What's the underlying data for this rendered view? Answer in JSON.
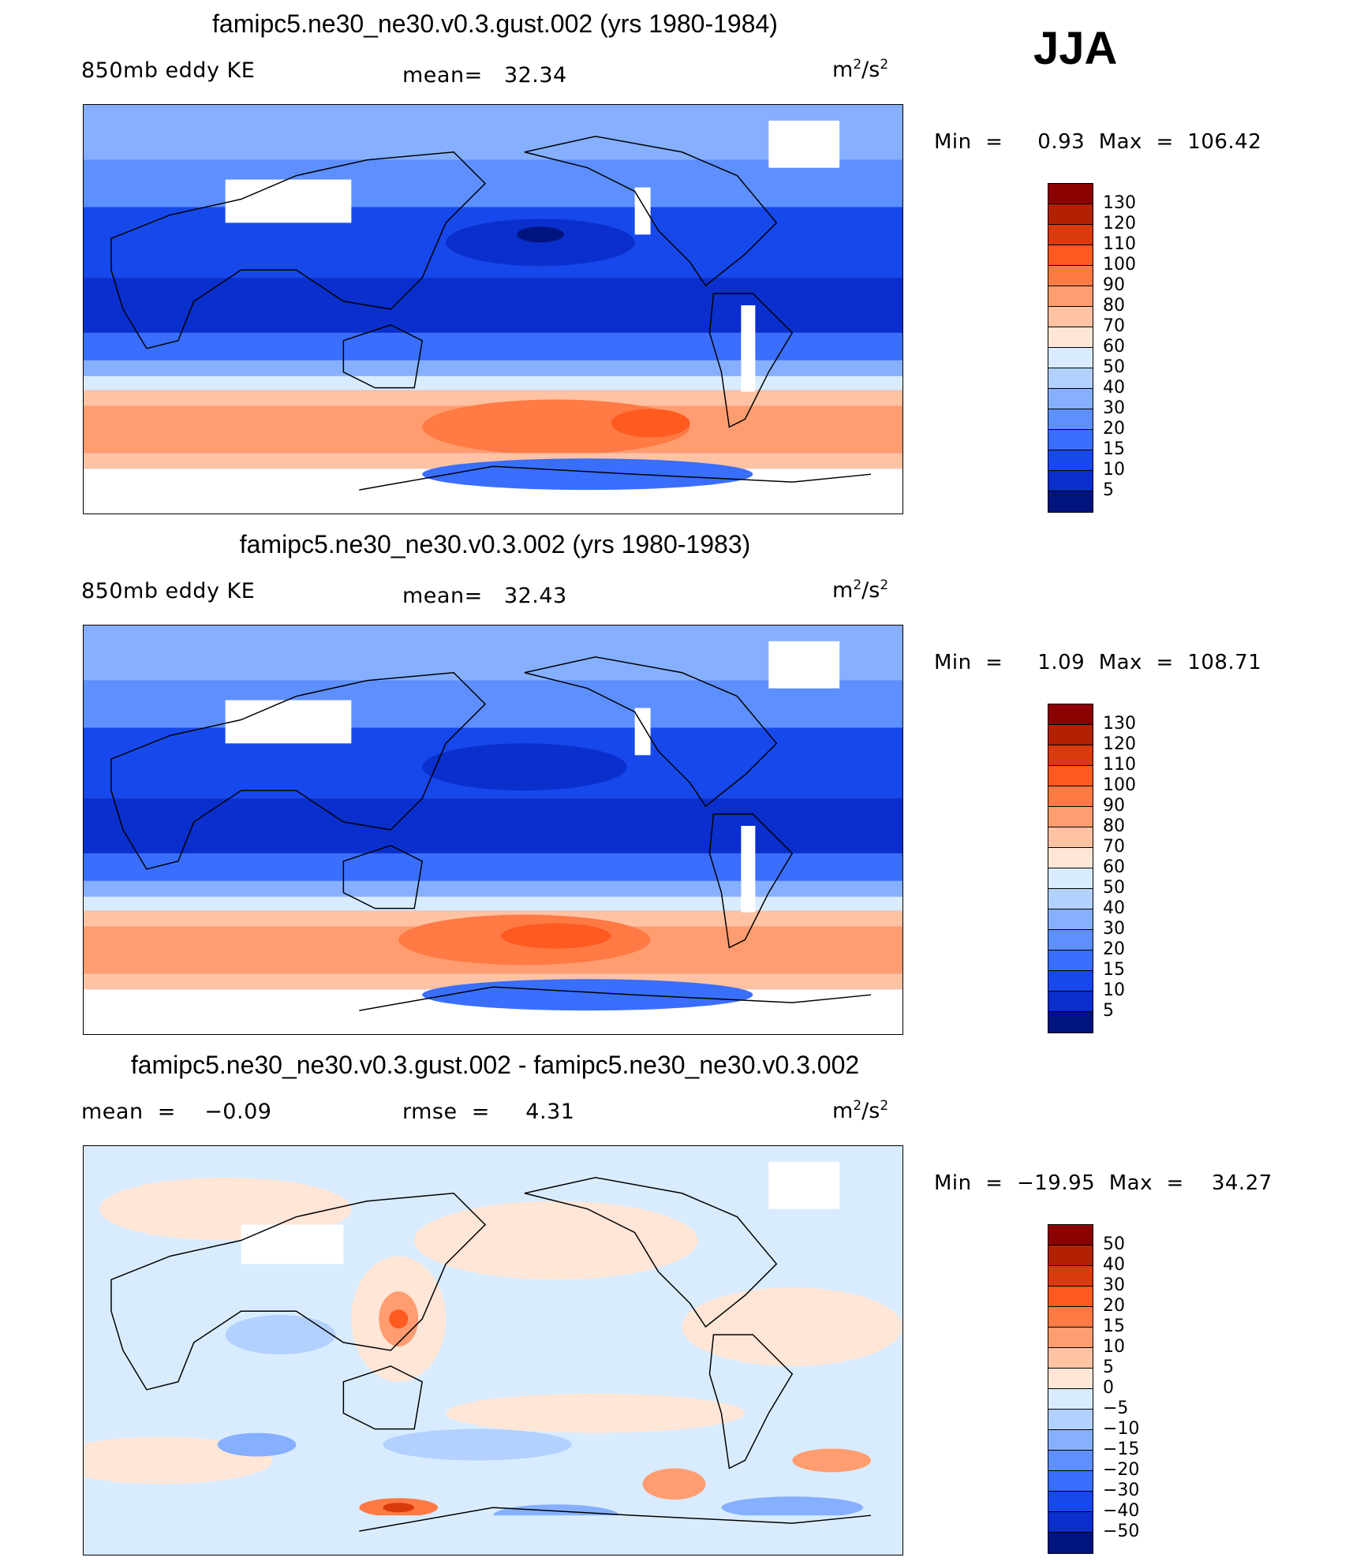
{
  "season": "JJA",
  "panels": [
    {
      "title": "famipc5.ne30_ne30.v0.3.gust.002 (yrs 1980-1984)",
      "left_text": "850mb  eddy  KE",
      "center_text": "mean=   32.34",
      "units_base": "m",
      "units_exp1": "2",
      "units_mid": "/s",
      "units_exp2": "2",
      "minmax": "Min  =     0.93  Max  =  106.42",
      "colorbar": {
        "levels": [
          "130",
          "120",
          "110",
          "100",
          "90",
          "80",
          "70",
          "60",
          "50",
          "40",
          "30",
          "20",
          "15",
          "10",
          "5"
        ],
        "colors": [
          "#8b0000",
          "#b22000",
          "#d93a0e",
          "#ff5a1f",
          "#ff7a45",
          "#ff9d70",
          "#ffc2a3",
          "#ffe6d6",
          "#d9ecff",
          "#b3d1ff",
          "#86afff",
          "#5e8fff",
          "#3a6eff",
          "#1748ec",
          "#0a2fcc",
          "#00137f"
        ]
      }
    },
    {
      "title": "famipc5.ne30_ne30.v0.3.002 (yrs 1980-1983)",
      "left_text": "850mb  eddy  KE",
      "center_text": "mean=   32.43",
      "units_base": "m",
      "units_exp1": "2",
      "units_mid": "/s",
      "units_exp2": "2",
      "minmax": "Min  =     1.09  Max  =  108.71",
      "colorbar": {
        "levels": [
          "130",
          "120",
          "110",
          "100",
          "90",
          "80",
          "70",
          "60",
          "50",
          "40",
          "30",
          "20",
          "15",
          "10",
          "5"
        ],
        "colors": [
          "#8b0000",
          "#b22000",
          "#d93a0e",
          "#ff5a1f",
          "#ff7a45",
          "#ff9d70",
          "#ffc2a3",
          "#ffe6d6",
          "#d9ecff",
          "#b3d1ff",
          "#86afff",
          "#5e8fff",
          "#3a6eff",
          "#1748ec",
          "#0a2fcc",
          "#00137f"
        ]
      }
    },
    {
      "title": "famipc5.ne30_ne30.v0.3.gust.002 - famipc5.ne30_ne30.v0.3.002",
      "left_text": "mean  =    −0.09",
      "center_text": "rmse  =     4.31",
      "units_base": "m",
      "units_exp1": "2",
      "units_mid": "/s",
      "units_exp2": "2",
      "minmax": "Min  =  −19.95  Max  =    34.27",
      "colorbar": {
        "levels": [
          "50",
          "40",
          "30",
          "20",
          "15",
          "10",
          "5",
          "0",
          "−5",
          "−10",
          "−15",
          "−20",
          "−30",
          "−40",
          "−50"
        ],
        "colors": [
          "#8b0000",
          "#b22000",
          "#d93a0e",
          "#ff5a1f",
          "#ff7a45",
          "#ff9d70",
          "#ffc2a3",
          "#ffe6d6",
          "#d9ecff",
          "#b3d1ff",
          "#86afff",
          "#5e8fff",
          "#3a6eff",
          "#1748ec",
          "#0a2fcc",
          "#00137f"
        ]
      }
    }
  ]
}
